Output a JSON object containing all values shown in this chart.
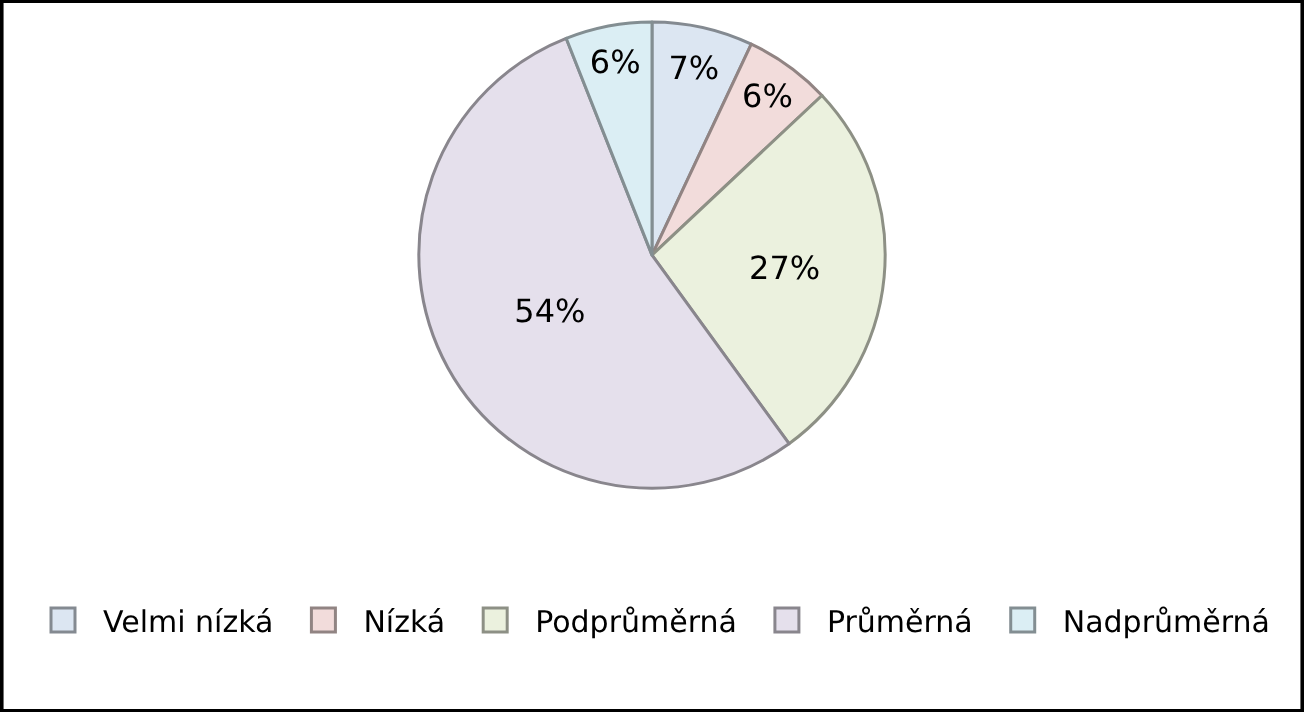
{
  "chart_data": {
    "type": "pie",
    "categories": [
      "Velmi nízká",
      "Nízká",
      "Podprůměrná",
      "Průměrná",
      "Nadprůměrná"
    ],
    "values": [
      7,
      6,
      27,
      54,
      6
    ],
    "value_labels": [
      "7%",
      "6%",
      "27%",
      "54%",
      "6%"
    ],
    "colors": [
      "#dce6f2",
      "#f2dcdb",
      "#ebf1de",
      "#e5e0ec",
      "#dbeef4"
    ],
    "legend": "bottom"
  }
}
